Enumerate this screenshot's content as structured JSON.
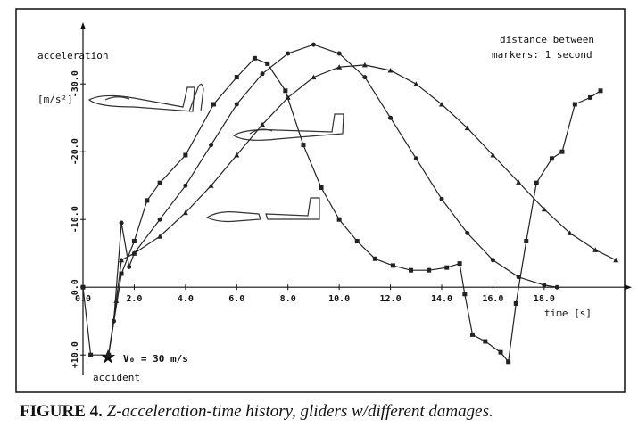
{
  "chart_data": {
    "type": "line",
    "y_label": "acceleration",
    "y_unit": "[m/s²]",
    "x_label": "time [s]",
    "annotations": [
      "distance between",
      "markers:  1 second",
      "V₀ = 30 m/s",
      "accident"
    ],
    "caption_label": "FIGURE 4.",
    "caption_text": "Z-acceleration-time history, gliders w/different damages.",
    "xlim": [
      0,
      21
    ],
    "ylim": [
      13,
      -37
    ],
    "xticks": [
      {
        "value": 0,
        "label": "0.0"
      },
      {
        "value": 2,
        "label": "2.0"
      },
      {
        "value": 4,
        "label": "4.0"
      },
      {
        "value": 6,
        "label": "6.0"
      },
      {
        "value": 8,
        "label": "8.0"
      },
      {
        "value": 10,
        "label": "10.0"
      },
      {
        "value": 12,
        "label": "12.0"
      },
      {
        "value": 14,
        "label": "14.0"
      },
      {
        "value": 16,
        "label": "16.0"
      },
      {
        "value": 18,
        "label": "18.0"
      }
    ],
    "yticks": [
      {
        "value": -30,
        "label": "-30.0"
      },
      {
        "value": -20,
        "label": "-20.0"
      },
      {
        "value": -10,
        "label": "-10.0"
      },
      {
        "value": 0,
        "label": "0.0"
      },
      {
        "value": 10,
        "label": "+10.0"
      }
    ],
    "series": [
      {
        "color": "#222222",
        "marker": "square",
        "x": [
          0,
          0.3,
          1,
          1.5,
          2,
          2.5,
          3,
          4,
          5.1,
          6,
          6.7,
          7.2,
          7.9,
          8.6,
          9.3,
          10,
          10.7,
          11.4,
          12.1,
          12.8,
          13.5,
          14.2,
          14.7,
          14.9,
          15.2,
          15.7,
          16.3,
          16.6,
          16.9,
          17.3,
          17.7,
          18.3,
          18.7,
          19.2,
          19.8,
          20.2
        ],
        "values": [
          0,
          10,
          10,
          -2,
          -6.8,
          -12.8,
          -15.4,
          -19.5,
          -27,
          -31,
          -33.8,
          -33,
          -29,
          -21,
          -14.7,
          -10,
          -6.8,
          -4.2,
          -3.2,
          -2.5,
          -2.5,
          -2.9,
          -3.5,
          1,
          7,
          8,
          9.6,
          11,
          2.4,
          -6.8,
          -15.4,
          -19,
          -20,
          -27,
          -28,
          -29
        ]
      },
      {
        "color": "#222222",
        "marker": "circle",
        "x": [
          1,
          1.2,
          1.5,
          1.8,
          2,
          3,
          4,
          5,
          6,
          7,
          8,
          9,
          10,
          11,
          12,
          13,
          14,
          15,
          16,
          17,
          18,
          18.5
        ],
        "values": [
          10,
          5,
          -9.5,
          -3,
          -5,
          -10,
          -15,
          -21,
          -27,
          -31.5,
          -34.5,
          -35.8,
          -34.5,
          -31,
          -25,
          -19,
          -13,
          -8,
          -4,
          -1.5,
          -0.3,
          0
        ]
      },
      {
        "color": "#222222",
        "marker": "triangle",
        "x": [
          1,
          1.3,
          1.5,
          2,
          3,
          4,
          5,
          6,
          7,
          8,
          9,
          10,
          11,
          12,
          13,
          14,
          15,
          16,
          17,
          18,
          19,
          20,
          20.8
        ],
        "values": [
          10,
          2,
          -4,
          -5,
          -7.5,
          -11,
          -15,
          -19.5,
          -24,
          -28,
          -31,
          -32.5,
          -32.8,
          -32,
          -30,
          -27,
          -23.5,
          -19.5,
          -15.5,
          -11.5,
          -8,
          -5.5,
          -4
        ]
      }
    ]
  }
}
